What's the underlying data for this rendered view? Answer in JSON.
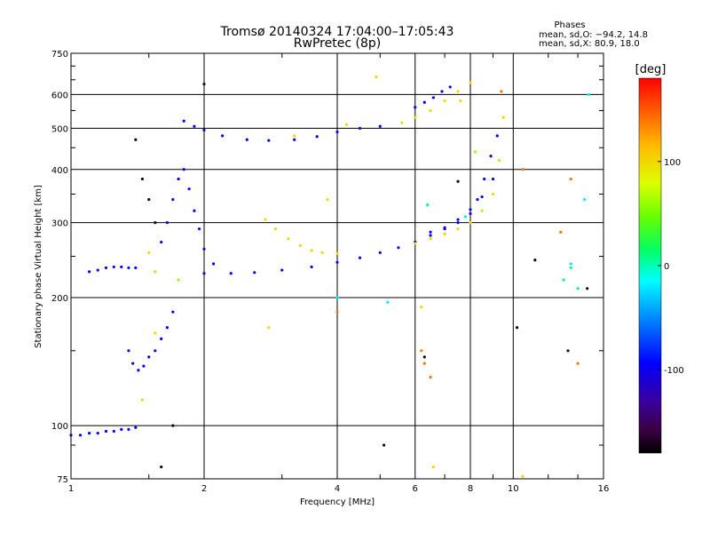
{
  "chart_data": {
    "type": "scatter",
    "title": "Tromsø 20140324 17:04:00–17:05:43",
    "subtitle": "RwPretec (8p)",
    "stats": {
      "heading": "Phases",
      "line_o": "mean, sd,O: −94.2, 14.8",
      "line_x": "mean, sd,X: 80.9, 18.0"
    },
    "xlabel": "Frequency [MHz]",
    "ylabel": "Stationary phase Virtual Height [km]",
    "x_scale": "log",
    "y_scale": "log",
    "xlim": [
      1,
      16
    ],
    "ylim": [
      75,
      750
    ],
    "x_ticks": [
      1,
      2,
      4,
      6,
      8,
      10,
      16
    ],
    "x_tick_labels": [
      "1",
      "2",
      "4",
      "6",
      "8",
      "10",
      "16"
    ],
    "y_ticks": [
      75,
      100,
      200,
      300,
      400,
      500,
      600,
      750
    ],
    "y_tick_labels": [
      "75",
      "100",
      "200",
      "300",
      "400",
      "500",
      "600",
      "750"
    ],
    "grid": true,
    "colorbar": {
      "label": "[deg]",
      "range": [
        -180,
        180
      ],
      "ticks": [
        100,
        0,
        -100
      ],
      "tick_labels": [
        "100",
        "0",
        "-100"
      ]
    },
    "series": [
      {
        "phase": -100,
        "x": [
          1.0,
          1.05,
          1.1,
          1.15,
          1.2,
          1.25,
          1.3,
          1.35,
          1.4
        ],
        "y": [
          95,
          95,
          96,
          96,
          97,
          97,
          98,
          98,
          99
        ]
      },
      {
        "phase": -100,
        "x": [
          1.1,
          1.15,
          1.2,
          1.25,
          1.3,
          1.35,
          1.4
        ],
        "y": [
          230,
          232,
          235,
          236,
          236,
          235,
          235
        ]
      },
      {
        "phase": -100,
        "x": [
          1.35,
          1.38,
          1.42,
          1.46,
          1.5,
          1.55,
          1.6,
          1.65,
          1.7
        ],
        "y": [
          150,
          140,
          135,
          138,
          145,
          150,
          160,
          170,
          185
        ]
      },
      {
        "phase": -100,
        "x": [
          1.6,
          1.65,
          1.7,
          1.75,
          1.8,
          1.85,
          1.9,
          1.95,
          2.0,
          2.1
        ],
        "y": [
          270,
          300,
          340,
          380,
          400,
          360,
          320,
          290,
          260,
          240
        ]
      },
      {
        "phase": -100,
        "x": [
          2.0,
          2.3,
          2.6,
          3.0,
          3.5,
          4.0,
          4.5,
          5.0,
          5.5,
          6.0,
          6.5,
          7.0,
          7.5,
          8.0,
          8.5,
          9.0
        ],
        "y": [
          228,
          228,
          229,
          232,
          236,
          242,
          248,
          255,
          262,
          270,
          280,
          292,
          305,
          322,
          345,
          380
        ]
      },
      {
        "phase": -100,
        "x": [
          1.8,
          1.9,
          2.0,
          2.2,
          2.5,
          2.8,
          3.2,
          3.6,
          4.0,
          4.5,
          5.0
        ],
        "y": [
          520,
          505,
          495,
          480,
          470,
          468,
          470,
          478,
          490,
          500,
          505
        ]
      },
      {
        "phase": -100,
        "x": [
          6.0,
          6.3,
          6.6,
          6.9,
          7.2
        ],
        "y": [
          560,
          575,
          590,
          610,
          625
        ]
      },
      {
        "phase": -100,
        "x": [
          6.5,
          7.0,
          7.5,
          8.0,
          8.3,
          8.6,
          8.9,
          9.2
        ],
        "y": [
          285,
          290,
          300,
          315,
          340,
          380,
          430,
          480
        ]
      },
      {
        "phase": 100,
        "x": [
          2.75,
          2.9,
          3.1,
          3.3,
          3.5,
          3.7,
          4.0
        ],
        "y": [
          305,
          290,
          275,
          265,
          258,
          255,
          254
        ]
      },
      {
        "phase": 100,
        "x": [
          6.0,
          6.5,
          7.0,
          7.5,
          8.0,
          8.5,
          9.0,
          9.3,
          9.5
        ],
        "y": [
          268,
          275,
          282,
          290,
          300,
          320,
          350,
          420,
          530
        ]
      },
      {
        "phase": 100,
        "x": [
          5.6,
          6.0,
          6.5,
          7.0,
          7.5,
          8.0
        ],
        "y": [
          515,
          530,
          550,
          580,
          610,
          640
        ]
      },
      {
        "phase": 100,
        "x": [
          1.45,
          1.5,
          1.55,
          2.8,
          3.2,
          3.8,
          4.2,
          4.9,
          6.2,
          6.6,
          7.6,
          10.5
        ],
        "y": [
          115,
          255,
          165,
          170,
          480,
          340,
          510,
          660,
          190,
          80,
          580,
          76
        ]
      },
      {
        "phase": 60,
        "x": [
          1.55,
          1.75,
          8.2
        ],
        "y": [
          230,
          220,
          440
        ]
      },
      {
        "phase": 15,
        "x": [
          6.4,
          13.0,
          13.5,
          14.0
        ],
        "y": [
          330,
          220,
          235,
          210
        ]
      },
      {
        "phase": -20,
        "x": [
          4.0,
          5.2,
          7.8,
          13.5,
          14.5,
          14.8
        ],
        "y": [
          200,
          195,
          310,
          240,
          340,
          600
        ]
      },
      {
        "phase": 140,
        "x": [
          4.0,
          6.2,
          6.3,
          6.5,
          9.4,
          10.5,
          12.8,
          13.5,
          14.0
        ],
        "y": [
          185,
          150,
          140,
          130,
          610,
          400,
          285,
          380,
          140
        ]
      },
      {
        "phase": -170,
        "x": [
          1.4,
          1.45,
          1.5,
          1.55,
          1.6,
          1.7,
          2.0,
          5.1,
          6.3,
          7.5,
          10.2,
          11.2,
          13.3,
          14.7
        ],
        "y": [
          470,
          380,
          340,
          300,
          80,
          100,
          635,
          90,
          145,
          375,
          170,
          245,
          150,
          210
        ]
      }
    ]
  }
}
